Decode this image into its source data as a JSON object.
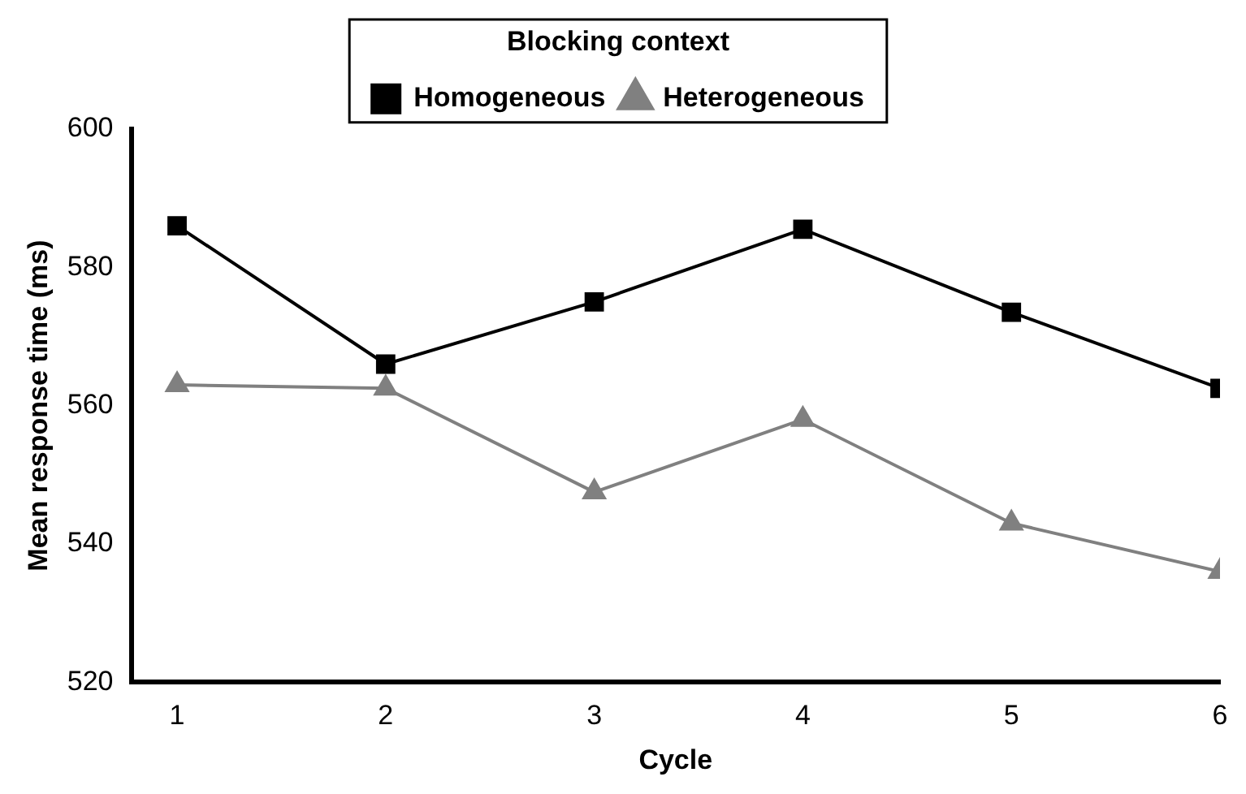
{
  "chart_data": {
    "type": "line",
    "xlabel": "Cycle",
    "ylabel": "Mean response time (ms)",
    "legend_title": "Blocking context",
    "legend": "top",
    "x": [
      1,
      2,
      3,
      4,
      5,
      6
    ],
    "xlim": [
      0.78,
      6
    ],
    "xticks": [
      1,
      2,
      3,
      4,
      5,
      6
    ],
    "ylim": [
      520,
      600
    ],
    "yticks": [
      520,
      540,
      560,
      580,
      600
    ],
    "grid": false,
    "series": [
      {
        "name": "Homogeneous",
        "color": "#000000",
        "marker": "square",
        "values": [
          586,
          566,
          575,
          585.5,
          573.5,
          562.5
        ]
      },
      {
        "name": "Heterogeneous",
        "color": "#808080",
        "marker": "triangle",
        "values": [
          563,
          562.5,
          547.5,
          558,
          543,
          536
        ]
      }
    ]
  }
}
